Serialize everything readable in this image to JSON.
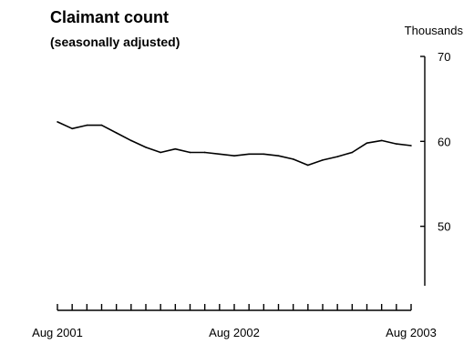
{
  "chart_data": {
    "type": "line",
    "title": "Claimant count",
    "subtitle": "(seasonally adjusted)",
    "y_unit_label": "Thousands",
    "xlabel": "",
    "ylabel": "",
    "ylim": [
      43,
      70
    ],
    "y_ticks": [
      50,
      60,
      70
    ],
    "y_tick_labels": [
      "50",
      "60",
      "70"
    ],
    "y_axis_side": "right",
    "grid": false,
    "legend": "none",
    "x_tick_count": 25,
    "x_tick_labels": [
      {
        "index": 0,
        "label": "Aug 2001"
      },
      {
        "index": 12,
        "label": "Aug 2002"
      },
      {
        "index": 24,
        "label": "Aug 2003"
      }
    ],
    "x": [
      "Aug 2001",
      "Sep 2001",
      "Oct 2001",
      "Nov 2001",
      "Dec 2001",
      "Jan 2002",
      "Feb 2002",
      "Mar 2002",
      "Apr 2002",
      "May 2002",
      "Jun 2002",
      "Jul 2002",
      "Aug 2002",
      "Sep 2002",
      "Oct 2002",
      "Nov 2002",
      "Dec 2002",
      "Jan 2003",
      "Feb 2003",
      "Mar 2003",
      "Apr 2003",
      "May 2003",
      "Jun 2003",
      "Jul 2003",
      "Aug 2003"
    ],
    "series": [
      {
        "color": "#000000",
        "values": [
          62.3,
          61.5,
          61.9,
          61.9,
          61.0,
          60.1,
          59.3,
          58.7,
          59.1,
          58.7,
          58.7,
          58.5,
          58.3,
          58.5,
          58.5,
          58.3,
          57.9,
          57.2,
          57.8,
          58.2,
          58.7,
          59.8,
          60.1,
          59.7,
          59.5
        ]
      }
    ]
  }
}
